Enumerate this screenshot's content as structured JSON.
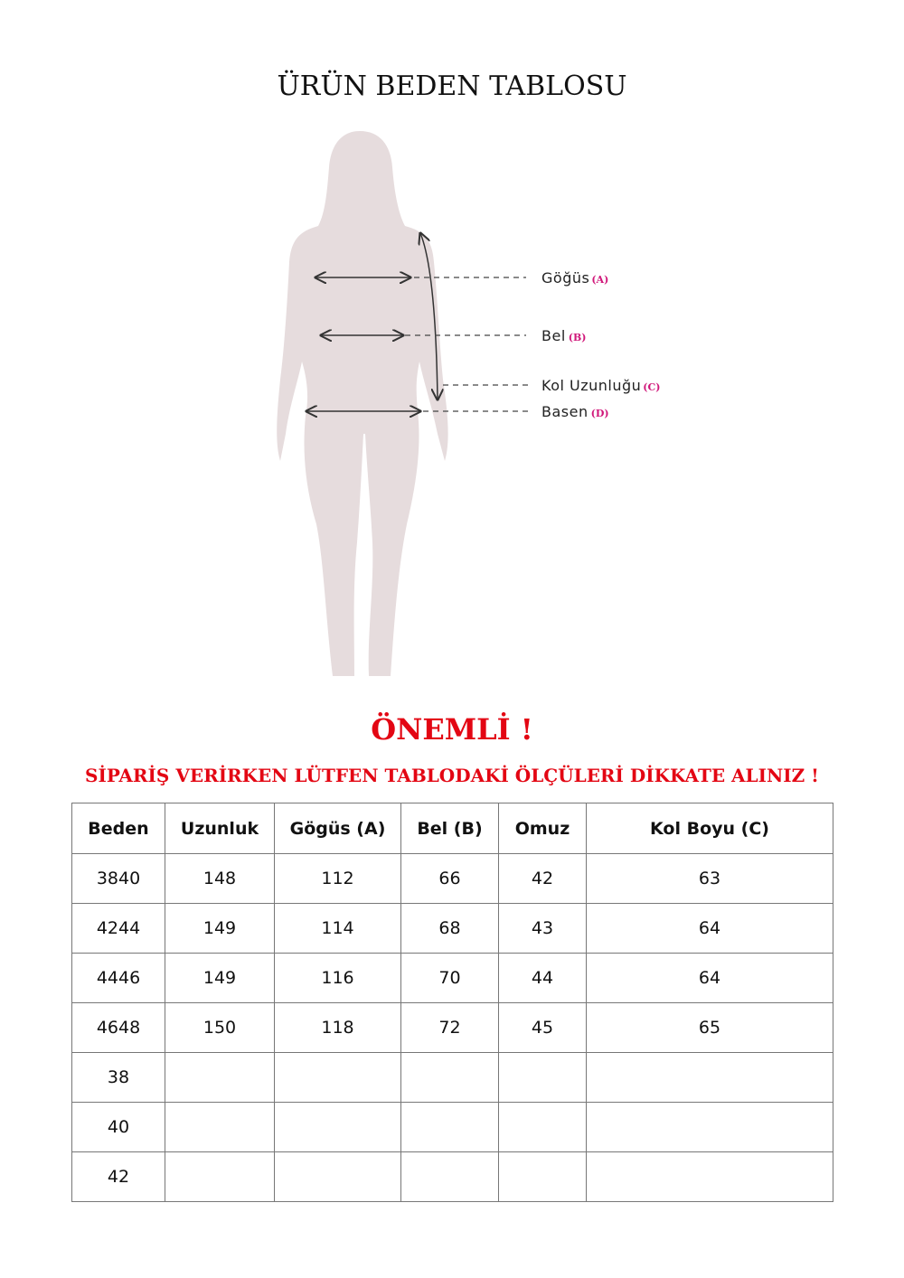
{
  "title": "ÜRÜN BEDEN TABLOSU",
  "figure": {
    "labels": [
      {
        "name": "Göğüs",
        "tag": "(A)"
      },
      {
        "name": "Bel",
        "tag": "(B)"
      },
      {
        "name": "Kol Uzunluğu",
        "tag": "(C)"
      },
      {
        "name": "Basen",
        "tag": "(D)"
      }
    ],
    "silhouette_color": "#e6dcdd",
    "tag_color": "#d0177a"
  },
  "important": "ÖNEMLİ !",
  "warning": "SİPARİŞ VERİRKEN LÜTFEN TABLODAKİ ÖLÇÜLERİ DİKKATE ALINIZ !",
  "accent_color": "#e30613",
  "table": {
    "headers": [
      "Beden",
      "Uzunluk",
      "Gögüs (A)",
      "Bel (B)",
      "Omuz",
      "Kol Boyu (C)"
    ],
    "rows": [
      [
        "3840",
        "148",
        "112",
        "66",
        "42",
        "63"
      ],
      [
        "4244",
        "149",
        "114",
        "68",
        "43",
        "64"
      ],
      [
        "4446",
        "149",
        "116",
        "70",
        "44",
        "64"
      ],
      [
        "4648",
        "150",
        "118",
        "72",
        "45",
        "65"
      ],
      [
        "38",
        "",
        "",
        "",
        "",
        ""
      ],
      [
        "40",
        "",
        "",
        "",
        "",
        ""
      ],
      [
        "42",
        "",
        "",
        "",
        "",
        ""
      ]
    ]
  }
}
